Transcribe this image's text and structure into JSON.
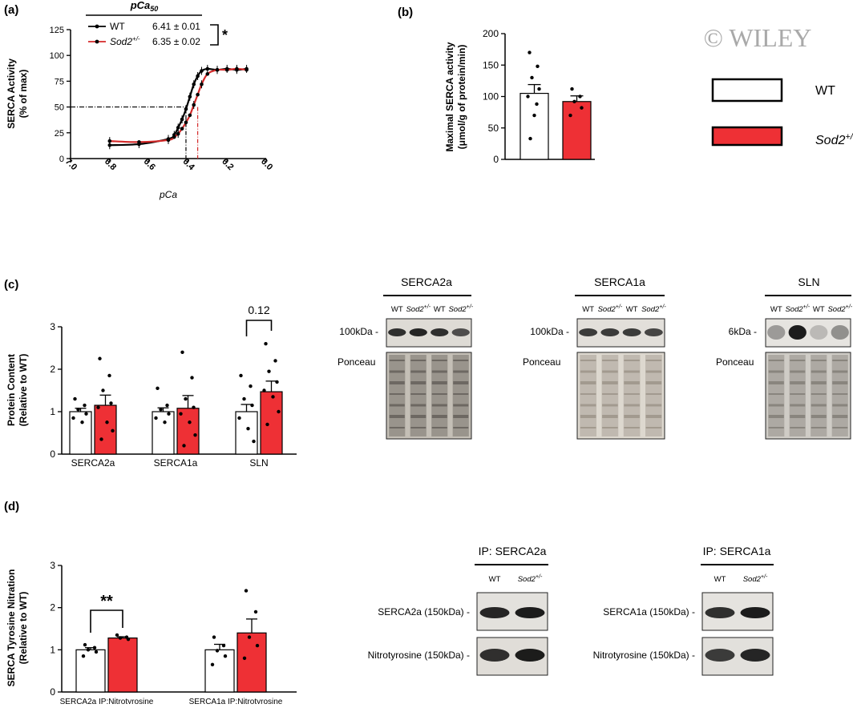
{
  "panels": {
    "a": {
      "label": "(a)",
      "header": "pCa",
      "header_sub": "50",
      "legend": [
        {
          "name": "WT",
          "value": "6.41 ± 0.01"
        },
        {
          "name": "Sod2",
          "sup": "+/-",
          "value": "6.35 ± 0.02"
        }
      ],
      "sig_label": "*"
    },
    "b": {
      "label": "(b)",
      "legend": [
        {
          "name": "WT",
          "color": "#ffffff"
        },
        {
          "name": "Sod2",
          "sup": "+/-",
          "color": "#ee3035"
        }
      ]
    },
    "c": {
      "label": "(c)",
      "sig_label": "0.12",
      "blots": [
        {
          "title": "SERCA2a",
          "lanes": [
            "WT",
            "Sod2+/-",
            "WT",
            "Sod2+/-"
          ],
          "marker": "100kDa -",
          "stain": "Ponceau"
        },
        {
          "title": "SERCA1a",
          "lanes": [
            "WT",
            "Sod2+/-",
            "WT",
            "Sod2+/-"
          ],
          "marker": "100kDa -",
          "stain": "Ponceau"
        },
        {
          "title": "SLN",
          "lanes": [
            "WT",
            "Sod2+/-",
            "WT",
            "Sod2+/-"
          ],
          "marker": "6kDa -",
          "stain": "Ponceau"
        }
      ]
    },
    "d": {
      "label": "(d)",
      "sig_label": "**",
      "blots": [
        {
          "title": "IP: SERCA2a",
          "lanes": [
            "WT",
            "Sod2+/-"
          ],
          "rows": [
            "SERCA2a (150kDa) -",
            "Nitrotyrosine (150kDa) -"
          ]
        },
        {
          "title": "IP: SERCA1a",
          "lanes": [
            "WT",
            "Sod2+/-"
          ],
          "rows": [
            "SERCA1a (150kDa) -",
            "Nitrotyrosine (150kDa) -"
          ]
        }
      ]
    }
  },
  "watermark": "© WILEY",
  "colors": {
    "wt": "#ffffff",
    "sod2": "#ee3035",
    "wt_line": "#000000",
    "sod2_line": "#d42a2a"
  },
  "chart_data": [
    {
      "type": "line",
      "xlabel": "pCa",
      "ylabel": "SERCA Activity (% of max)",
      "xlim": [
        7.0,
        6.0
      ],
      "ylim": [
        0,
        125
      ],
      "xticks": [
        "7.0",
        "6.8",
        "6.6",
        "6.4",
        "6.2",
        "6.0"
      ],
      "yticks": [
        "0",
        "25",
        "50",
        "75",
        "100",
        "125"
      ],
      "reference_y": 50,
      "series": [
        {
          "name": "WT",
          "x": [
            6.8,
            6.65,
            6.5,
            6.47,
            6.45,
            6.43,
            6.41,
            6.39,
            6.37,
            6.35,
            6.33,
            6.3,
            6.25,
            6.2,
            6.15,
            6.1
          ],
          "y": [
            13,
            14,
            19,
            23,
            30,
            38,
            48,
            60,
            72,
            80,
            85,
            87,
            86,
            87,
            86,
            87
          ]
        },
        {
          "name": "Sod2+/-",
          "x": [
            6.8,
            6.65,
            6.5,
            6.47,
            6.45,
            6.43,
            6.41,
            6.39,
            6.37,
            6.35,
            6.33,
            6.3,
            6.25,
            6.2,
            6.15,
            6.1
          ],
          "y": [
            17,
            16,
            18,
            21,
            24,
            29,
            35,
            42,
            52,
            62,
            72,
            82,
            86,
            86,
            87,
            86
          ]
        }
      ],
      "pca50": {
        "WT": 6.41,
        "Sod2+/-": 6.35
      }
    },
    {
      "type": "bar",
      "ylabel": "Maximal SERCA activity (μmol/g of protein/min)",
      "ylim": [
        0,
        200
      ],
      "yticks": [
        "0",
        "50",
        "100",
        "150",
        "200"
      ],
      "categories": [
        "WT",
        "Sod2+/-"
      ],
      "values": [
        105,
        92
      ],
      "sem": [
        14,
        9
      ],
      "points": [
        [
          170,
          148,
          130,
          112,
          100,
          88,
          70,
          33
        ],
        [
          112,
          100,
          92,
          82,
          70
        ]
      ]
    },
    {
      "type": "bar",
      "ylabel": "Protein Content (Relative to WT)",
      "ylim": [
        0,
        3
      ],
      "yticks": [
        "0",
        "1",
        "2",
        "3"
      ],
      "categories": [
        "SERCA2a",
        "SERCA1a",
        "SLN"
      ],
      "series": [
        {
          "name": "WT",
          "values": [
            1.0,
            1.0,
            1.0
          ],
          "sem": [
            0.08,
            0.09,
            0.17
          ],
          "points": [
            [
              1.3,
              1.15,
              1.05,
              0.95,
              0.85,
              0.75
            ],
            [
              1.55,
              1.15,
              1.05,
              0.95,
              0.85,
              0.75
            ],
            [
              1.85,
              1.6,
              1.3,
              1.15,
              0.85,
              0.6,
              0.3
            ]
          ]
        },
        {
          "name": "Sod2+/-",
          "values": [
            1.15,
            1.08,
            1.47
          ],
          "sem": [
            0.24,
            0.3,
            0.25
          ],
          "points": [
            [
              2.25,
              1.85,
              1.5,
              1.2,
              1.1,
              0.75,
              0.55,
              0.35
            ],
            [
              2.4,
              1.8,
              1.3,
              1.1,
              0.95,
              0.75,
              0.45,
              0.2
            ],
            [
              2.6,
              2.2,
              1.95,
              1.7,
              1.5,
              1.35,
              1.0,
              0.7
            ]
          ]
        }
      ],
      "comparison": {
        "category": "SLN",
        "label": "0.12"
      }
    },
    {
      "type": "bar",
      "ylabel": "SERCA Tyrosine Nitration (Relative to WT)",
      "ylim": [
        0,
        3
      ],
      "yticks": [
        "0",
        "1",
        "2",
        "3"
      ],
      "categories": [
        "SERCA2a IP:Nitrotyrosine",
        "SERCA1a IP:Nitrotyrosine"
      ],
      "series": [
        {
          "name": "WT",
          "values": [
            1.0,
            1.0
          ],
          "sem": [
            0.05,
            0.13
          ],
          "points": [
            [
              1.12,
              1.05,
              1.0,
              0.95,
              0.85
            ],
            [
              1.3,
              1.1,
              0.98,
              0.85,
              0.65
            ]
          ]
        },
        {
          "name": "Sod2+/-",
          "values": [
            1.28,
            1.4
          ],
          "sem": [
            0.03,
            0.33
          ],
          "points": [
            [
              1.35,
              1.3,
              1.28,
              1.25
            ],
            [
              2.4,
              1.9,
              1.3,
              1.1,
              0.8
            ]
          ]
        }
      ],
      "comparison": {
        "category": "SERCA2a IP:Nitrotyrosine",
        "label": "**"
      }
    }
  ]
}
